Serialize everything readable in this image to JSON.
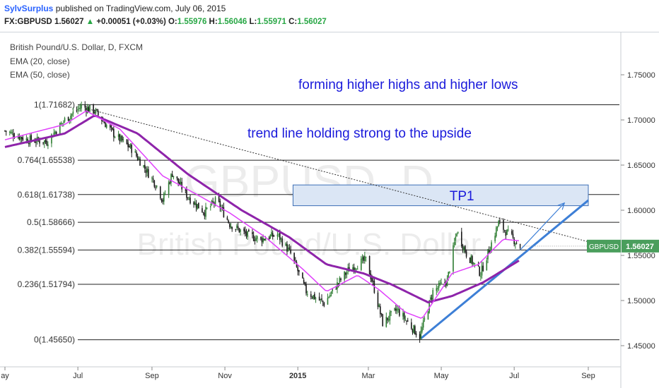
{
  "header": {
    "username": "SylvSurplus",
    "published_text": "published on TradingView.com, July 06, 2015",
    "symbol": "FX:GBPUSD",
    "last": "1.56027",
    "change": "+0.00051 (+0.03%)",
    "open_label": "O:",
    "open": "1.55976",
    "high_label": "H:",
    "high": "1.56046",
    "low_label": "L:",
    "low": "1.55971",
    "close_label": "C:",
    "close": "1.56027"
  },
  "legend": {
    "title": "British Pound/U.S. Dollar, D, FXCM",
    "ema1": "EMA (20, close)",
    "ema2": "EMA (50, close)"
  },
  "watermark": {
    "line1": "GBPUSD, D",
    "line2": "British Pound/U.S. Dollar"
  },
  "annotations": {
    "text1": "forming higher highs and higher lows",
    "text2": "trend line holding strong to the upside",
    "tp_label": "TP1"
  },
  "price_tag": {
    "symbol": "GBPUSD",
    "value": "1.56027"
  },
  "colors": {
    "up": "#2e7d32",
    "down": "#1a1a1a",
    "ema20": "#e040fb",
    "ema50": "#8e24aa",
    "trend": "#3d7fd6",
    "text_blue": "#1a1adb",
    "tp_fill": "#dbe6f5",
    "tp_border": "#3d6fb6",
    "tag": "#4a9e5c"
  },
  "chart_data": {
    "type": "candlestick",
    "title": "British Pound/U.S. Dollar, D, FXCM",
    "x_axis": {
      "ticks": [
        "ay",
        "Jul",
        "Sep",
        "Nov",
        "2015",
        "Mar",
        "May",
        "Jul",
        "Sep"
      ],
      "tick_dates": [
        "2014-05-01",
        "2014-07-01",
        "2014-09-01",
        "2014-11-01",
        "2015-01-01",
        "2015-03-01",
        "2015-05-01",
        "2015-07-01",
        "2015-09-01"
      ]
    },
    "y_axis": {
      "range": [
        1.435,
        1.775
      ],
      "ticks": [
        "1.75000",
        "1.70000",
        "1.65000",
        "1.60000",
        "1.55000",
        "1.50000",
        "1.45000"
      ],
      "side": "right"
    },
    "fib_levels": [
      {
        "label": "1(1.71682)",
        "value": 1.71682
      },
      {
        "label": "0.764(1.65538)",
        "value": 1.65538
      },
      {
        "label": "0.618(1.61738)",
        "value": 1.61738
      },
      {
        "label": "0.5(1.58666)",
        "value": 1.58666
      },
      {
        "label": "0.382(1.55594)",
        "value": 1.55594
      },
      {
        "label": "0.236(1.51794)",
        "value": 1.51794
      },
      {
        "label": "0(1.45650)",
        "value": 1.4565
      }
    ],
    "close_keypoints": [
      [
        "2014-05-01",
        1.688
      ],
      [
        "2014-05-20",
        1.678
      ],
      [
        "2014-06-05",
        1.676
      ],
      [
        "2014-06-20",
        1.7
      ],
      [
        "2014-07-04",
        1.715
      ],
      [
        "2014-07-15",
        1.71
      ],
      [
        "2014-08-01",
        1.683
      ],
      [
        "2014-08-15",
        1.668
      ],
      [
        "2014-09-05",
        1.627
      ],
      [
        "2014-09-10",
        1.611
      ],
      [
        "2014-09-18",
        1.641
      ],
      [
        "2014-10-01",
        1.615
      ],
      [
        "2014-10-15",
        1.598
      ],
      [
        "2014-10-25",
        1.611
      ],
      [
        "2014-11-05",
        1.585
      ],
      [
        "2014-11-20",
        1.572
      ],
      [
        "2014-12-01",
        1.568
      ],
      [
        "2014-12-15",
        1.573
      ],
      [
        "2014-12-26",
        1.552
      ],
      [
        "2015-01-08",
        1.51
      ],
      [
        "2015-01-23",
        1.497
      ],
      [
        "2015-02-03",
        1.518
      ],
      [
        "2015-02-13",
        1.535
      ],
      [
        "2015-02-27",
        1.545
      ],
      [
        "2015-03-05",
        1.518
      ],
      [
        "2015-03-13",
        1.475
      ],
      [
        "2015-03-25",
        1.49
      ],
      [
        "2015-04-13",
        1.46
      ],
      [
        "2015-04-24",
        1.51
      ],
      [
        "2015-05-06",
        1.522
      ],
      [
        "2015-05-14",
        1.577
      ],
      [
        "2015-05-22",
        1.552
      ],
      [
        "2015-06-03",
        1.53
      ],
      [
        "2015-06-18",
        1.586
      ],
      [
        "2015-06-25",
        1.575
      ],
      [
        "2015-07-06",
        1.56
      ]
    ],
    "ema20_keypoints": [
      [
        "2014-05-01",
        1.678
      ],
      [
        "2014-06-20",
        1.695
      ],
      [
        "2014-07-08",
        1.71
      ],
      [
        "2014-08-05",
        1.69
      ],
      [
        "2014-09-10",
        1.638
      ],
      [
        "2014-10-05",
        1.62
      ],
      [
        "2014-11-05",
        1.597
      ],
      [
        "2014-12-05",
        1.57
      ],
      [
        "2015-01-05",
        1.535
      ],
      [
        "2015-01-25",
        1.51
      ],
      [
        "2015-02-20",
        1.528
      ],
      [
        "2015-03-10",
        1.512
      ],
      [
        "2015-04-01",
        1.487
      ],
      [
        "2015-04-15",
        1.48
      ],
      [
        "2015-05-10",
        1.53
      ],
      [
        "2015-06-01",
        1.54
      ],
      [
        "2015-06-22",
        1.568
      ],
      [
        "2015-07-06",
        1.566
      ]
    ],
    "ema50_keypoints": [
      [
        "2014-05-01",
        1.67
      ],
      [
        "2014-06-20",
        1.685
      ],
      [
        "2014-07-15",
        1.705
      ],
      [
        "2014-08-20",
        1.685
      ],
      [
        "2014-10-01",
        1.64
      ],
      [
        "2014-11-15",
        1.6
      ],
      [
        "2014-12-25",
        1.57
      ],
      [
        "2015-01-25",
        1.54
      ],
      [
        "2015-02-25",
        1.53
      ],
      [
        "2015-03-20",
        1.518
      ],
      [
        "2015-04-20",
        1.498
      ],
      [
        "2015-05-10",
        1.505
      ],
      [
        "2015-06-05",
        1.52
      ],
      [
        "2015-07-06",
        1.545
      ]
    ],
    "dotted_trendline": [
      [
        "2014-07-10",
        1.712
      ],
      [
        "2015-09-10",
        1.556
      ]
    ],
    "support_trendline": [
      [
        "2015-04-14",
        1.458
      ],
      [
        "2015-09-01",
        1.611
      ]
    ],
    "arrow": [
      [
        "2015-07-06",
        1.556
      ],
      [
        "2015-08-12",
        1.608
      ]
    ],
    "tp_box": {
      "label": "TP1",
      "from": "2014-12-28",
      "to": "2015-09-01",
      "low": 1.605,
      "high": 1.628
    }
  }
}
